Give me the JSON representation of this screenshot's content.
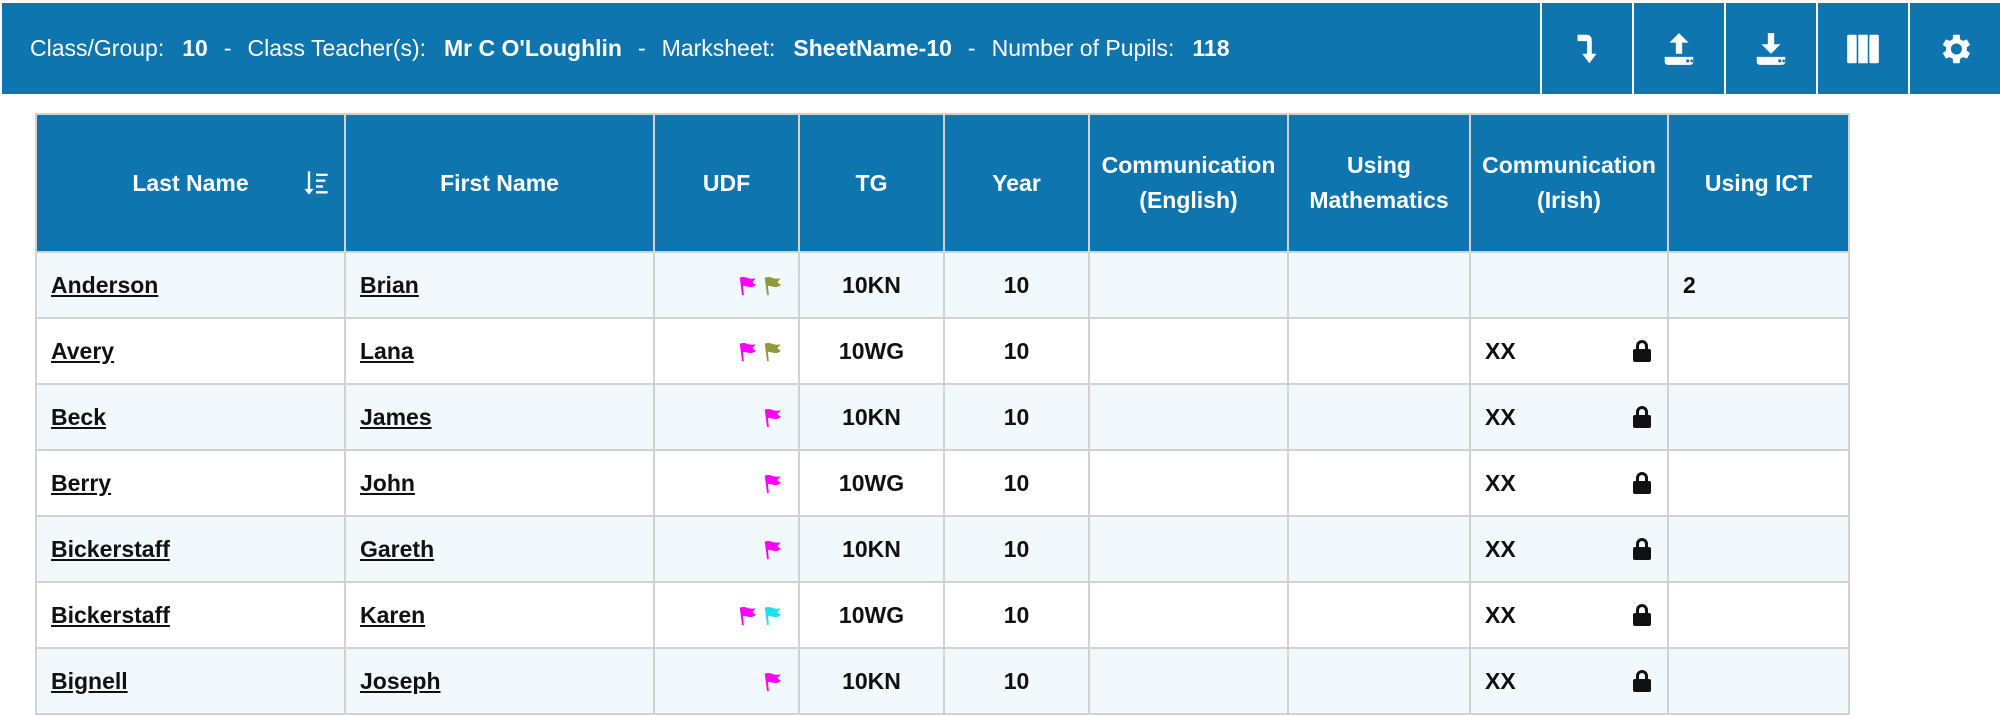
{
  "header": {
    "class_label": "Class/Group:",
    "class_value": "10",
    "teacher_label": "Class Teacher(s):",
    "teacher_value": "Mr C O'Loughlin",
    "marksheet_label": "Marksheet:",
    "marksheet_value": "SheetName-10",
    "pupils_label": "Number of Pupils:",
    "pupils_value": "118",
    "separator": "-",
    "bg_color": "#0f75ae"
  },
  "toolbar": {
    "buttons": [
      {
        "icon": "jump-arrow-icon"
      },
      {
        "icon": "upload-icon"
      },
      {
        "icon": "download-icon"
      },
      {
        "icon": "columns-icon"
      },
      {
        "icon": "gear-icon"
      }
    ]
  },
  "table": {
    "columns": [
      "Last Name",
      "First Name",
      "UDF",
      "TG",
      "Year",
      "Communication\n(English)",
      "Using\nMathematics",
      "Communication\n(Irish)",
      "Using ICT"
    ],
    "flag_colors": {
      "magenta": "#ff00ff",
      "olive": "#8f9a3c",
      "cyan": "#1de0f0"
    },
    "rows": [
      {
        "last": "Anderson",
        "first": "Brian",
        "flags": [
          "magenta",
          "olive"
        ],
        "tg": "10KN",
        "year": "10",
        "eng": "",
        "math": "",
        "irish": "",
        "irish_locked": false,
        "ict": "2"
      },
      {
        "last": "Avery",
        "first": "Lana",
        "flags": [
          "magenta",
          "olive"
        ],
        "tg": "10WG",
        "year": "10",
        "eng": "",
        "math": "",
        "irish": "XX",
        "irish_locked": true,
        "ict": ""
      },
      {
        "last": "Beck",
        "first": "James",
        "flags": [
          "magenta"
        ],
        "tg": "10KN",
        "year": "10",
        "eng": "",
        "math": "",
        "irish": "XX",
        "irish_locked": true,
        "ict": ""
      },
      {
        "last": "Berry",
        "first": "John",
        "flags": [
          "magenta"
        ],
        "tg": "10WG",
        "year": "10",
        "eng": "",
        "math": "",
        "irish": "XX",
        "irish_locked": true,
        "ict": ""
      },
      {
        "last": "Bickerstaff",
        "first": "Gareth",
        "flags": [
          "magenta"
        ],
        "tg": "10KN",
        "year": "10",
        "eng": "",
        "math": "",
        "irish": "XX",
        "irish_locked": true,
        "ict": ""
      },
      {
        "last": "Bickerstaff",
        "first": "Karen",
        "flags": [
          "magenta",
          "cyan"
        ],
        "tg": "10WG",
        "year": "10",
        "eng": "",
        "math": "",
        "irish": "XX",
        "irish_locked": true,
        "ict": ""
      },
      {
        "last": "Bignell",
        "first": "Joseph",
        "flags": [
          "magenta"
        ],
        "tg": "10KN",
        "year": "10",
        "eng": "",
        "math": "",
        "irish": "XX",
        "irish_locked": true,
        "ict": ""
      }
    ]
  }
}
